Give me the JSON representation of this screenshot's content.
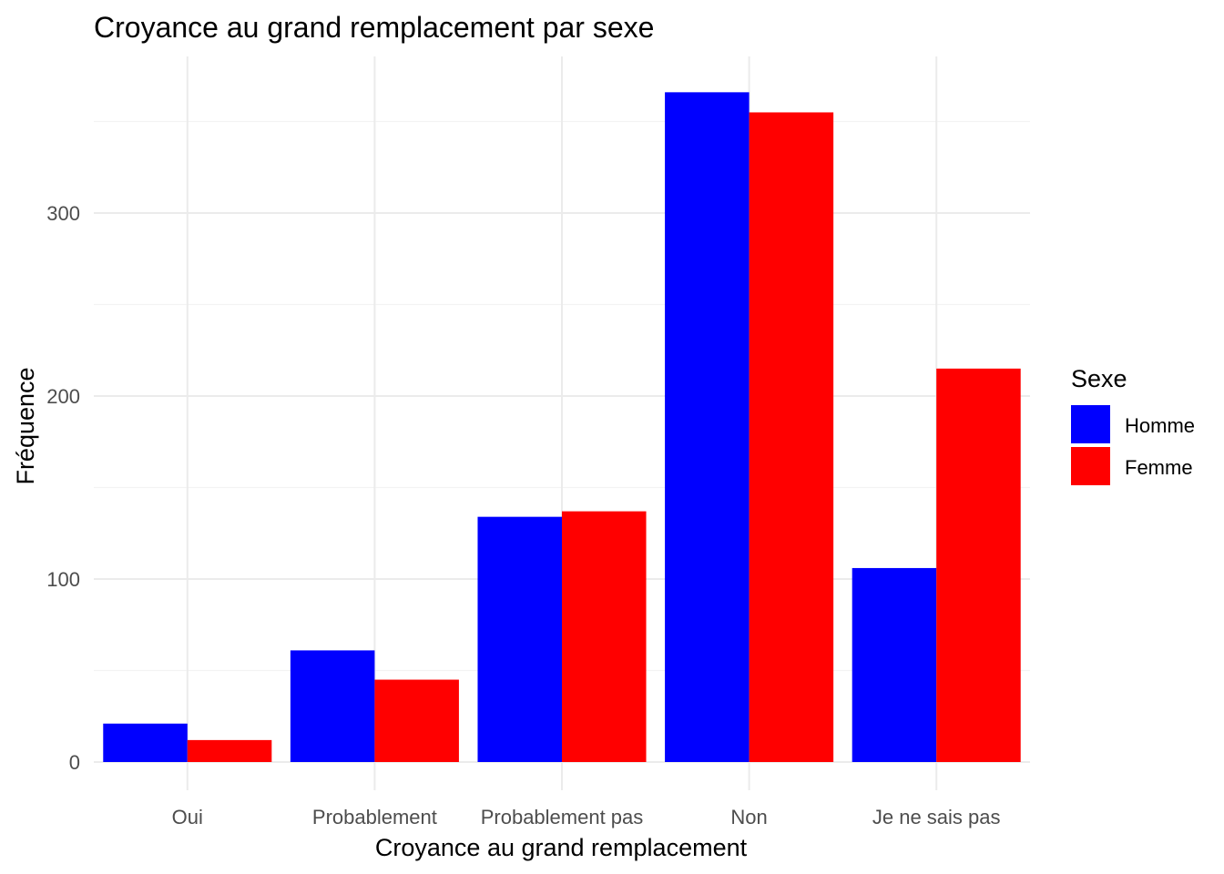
{
  "chart_data": {
    "type": "bar",
    "title": "Croyance au grand remplacement par sexe",
    "xlabel": "Croyance au grand remplacement",
    "ylabel": "Fréquence",
    "categories": [
      "Oui",
      "Probablement",
      "Probablement pas",
      "Non",
      "Je ne sais pas"
    ],
    "series": [
      {
        "name": "Homme",
        "color": "#0000ff",
        "values": [
          21,
          61,
          134,
          366,
          106
        ]
      },
      {
        "name": "Femme",
        "color": "#ff0000",
        "values": [
          12,
          45,
          137,
          355,
          215
        ]
      }
    ],
    "ylim": [
      0,
      370
    ],
    "yticks": [
      "0",
      "100",
      "200",
      "300"
    ],
    "grid": true,
    "legend": {
      "title": "Sexe",
      "placement": "right"
    }
  }
}
